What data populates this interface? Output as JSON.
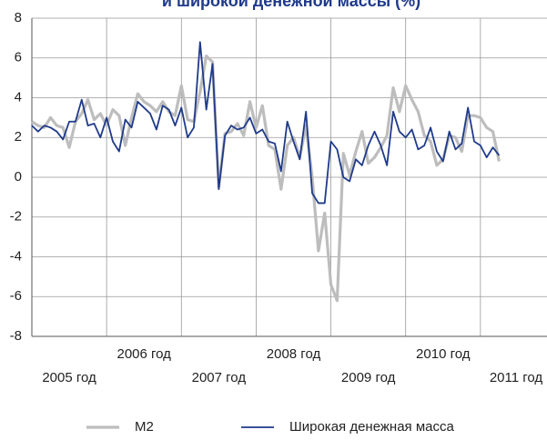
{
  "chart_data": {
    "type": "line",
    "title": "и широкой денежной массы (%)",
    "x": [
      0,
      1,
      2,
      3,
      4,
      5,
      6,
      7,
      8,
      9,
      10,
      11,
      12,
      13,
      14,
      15,
      16,
      17,
      18,
      19,
      20,
      21,
      22,
      23,
      24,
      25,
      26,
      27,
      28,
      29,
      30,
      31,
      32,
      33,
      34,
      35,
      36,
      37,
      38,
      39,
      40,
      41,
      42,
      43,
      44,
      45,
      46,
      47,
      48,
      49,
      50,
      51,
      52,
      53,
      54,
      55,
      56,
      57,
      58,
      59,
      60,
      61,
      62,
      63,
      64,
      65,
      66,
      67,
      68,
      69,
      70,
      71,
      72,
      73,
      74,
      75
    ],
    "xlim": [
      0,
      84
    ],
    "xticks": [
      {
        "value": 6,
        "label": "2005 год"
      },
      {
        "value": 18,
        "label": "2006 год"
      },
      {
        "value": 30,
        "label": "2007 год"
      },
      {
        "value": 42,
        "label": "2008 год"
      },
      {
        "value": 54,
        "label": "2009 год"
      },
      {
        "value": 66,
        "label": "2010 год"
      },
      {
        "value": 78,
        "label": "2011 год"
      }
    ],
    "xgrid": [
      12,
      24,
      36,
      48,
      60,
      72
    ],
    "ylim": [
      -8,
      8
    ],
    "yticks": [
      -8,
      -6,
      -4,
      -2,
      0,
      2,
      4,
      6,
      8
    ],
    "grid": true,
    "legend": "bottom",
    "series": [
      {
        "name": "M2",
        "color": "#bdbdbd",
        "values": [
          2.8,
          2.6,
          2.5,
          3.0,
          2.6,
          2.5,
          1.5,
          2.8,
          3.2,
          3.9,
          2.9,
          3.2,
          2.6,
          3.4,
          3.1,
          1.6,
          3.0,
          4.2,
          3.8,
          3.6,
          3.3,
          3.8,
          3.3,
          3.1,
          4.6,
          2.9,
          2.8,
          4.3,
          6.1,
          5.8,
          -0.5,
          2.2,
          2.3,
          2.7,
          2.1,
          3.8,
          2.5,
          3.6,
          1.6,
          1.4,
          -0.6,
          1.6,
          2.0,
          1.0,
          2.6,
          0.0,
          -3.7,
          -1.8,
          -5.4,
          -6.2,
          1.2,
          0.1,
          1.3,
          2.3,
          0.7,
          1.0,
          1.5,
          2.1,
          4.5,
          3.3,
          4.6,
          3.9,
          3.3,
          2.1,
          1.8,
          0.6,
          0.9,
          2.1,
          2.0,
          1.3,
          3.1,
          3.1,
          3.0,
          2.5,
          2.3,
          0.8
        ]
      },
      {
        "name": "Широкая денежная масса",
        "color": "#1f3a8a",
        "values": [
          2.6,
          2.3,
          2.6,
          2.5,
          2.3,
          1.9,
          2.8,
          2.8,
          3.9,
          2.6,
          2.7,
          2.0,
          3.0,
          1.8,
          1.3,
          2.9,
          2.5,
          3.8,
          3.5,
          3.2,
          2.4,
          3.6,
          3.4,
          2.6,
          3.5,
          2.0,
          2.5,
          6.8,
          3.4,
          5.7,
          -0.6,
          2.1,
          2.6,
          2.4,
          2.5,
          3.0,
          2.2,
          2.4,
          1.8,
          1.7,
          0.3,
          2.8,
          1.8,
          0.9,
          3.3,
          -0.8,
          -1.3,
          -1.3,
          1.8,
          1.4,
          0.0,
          -0.2,
          0.9,
          0.6,
          1.6,
          2.3,
          1.6,
          0.6,
          3.3,
          2.3,
          2.0,
          2.4,
          1.4,
          1.6,
          2.5,
          1.3,
          0.8,
          2.3,
          1.4,
          1.7,
          3.5,
          1.8,
          1.6,
          1.0,
          1.5,
          1.1
        ]
      }
    ]
  }
}
